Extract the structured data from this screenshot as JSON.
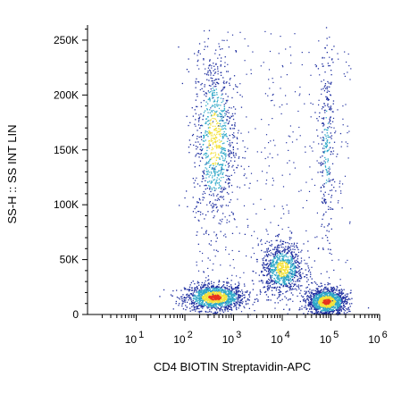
{
  "chart_data": {
    "type": "scatter",
    "style": "flow-cytometry density dot plot (pseudocolor)",
    "xlabel": "CD4 BIOTIN Streptavidin-APC",
    "ylabel": "SS-H :: SS INT LIN",
    "x_scale": "log",
    "xlim": [
      1,
      1000000
    ],
    "ylim": [
      0,
      262144
    ],
    "x_ticks": [
      {
        "base": "10",
        "exp": "1",
        "value": 10
      },
      {
        "base": "10",
        "exp": "2",
        "value": 100
      },
      {
        "base": "10",
        "exp": "3",
        "value": 1000
      },
      {
        "base": "10",
        "exp": "4",
        "value": 10000
      },
      {
        "base": "10",
        "exp": "5",
        "value": 100000
      },
      {
        "base": "10",
        "exp": "6",
        "value": 1000000
      }
    ],
    "y_ticks": [
      {
        "label": "0",
        "value": 0
      },
      {
        "label": "50K",
        "value": 50000
      },
      {
        "label": "100K",
        "value": 100000
      },
      {
        "label": "150K",
        "value": 150000
      },
      {
        "label": "200K",
        "value": 200000
      },
      {
        "label": "250K",
        "value": 250000
      }
    ],
    "populations": [
      {
        "x_center": 400,
        "y_center": 16000,
        "x_spread_decades": 0.3,
        "y_spread": 6000,
        "relative_density": "high"
      },
      {
        "x_center": 400,
        "y_center": 160000,
        "x_spread_decades": 0.22,
        "y_spread": 40000,
        "relative_density": "medium"
      },
      {
        "x_center": 10000,
        "y_center": 42000,
        "x_spread_decades": 0.22,
        "y_spread": 12000,
        "relative_density": "medium"
      },
      {
        "x_center": 80000,
        "y_center": 12000,
        "x_spread_decades": 0.2,
        "y_spread": 6000,
        "relative_density": "high"
      },
      {
        "x_center": 80000,
        "y_center": 150000,
        "x_spread_decades": 0.08,
        "y_spread": 45000,
        "relative_density": "low"
      }
    ],
    "colors": {
      "low": "#1f2fa0",
      "mid": "#2fa8c8",
      "high": "#f3e23a",
      "peak": "#e8321e"
    },
    "grid": false,
    "legend": "none"
  }
}
